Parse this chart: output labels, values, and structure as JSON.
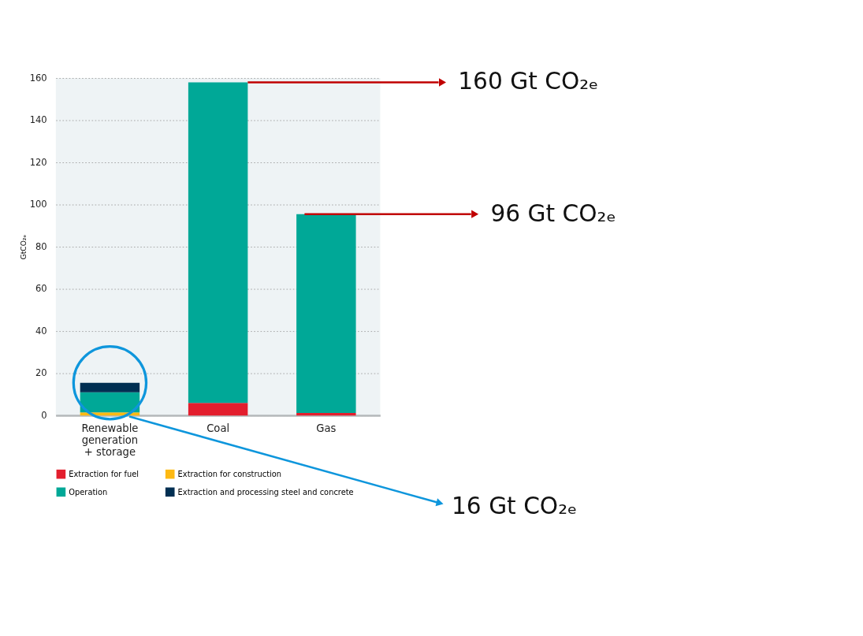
{
  "chart_data": {
    "type": "bar",
    "stacked": true,
    "ylabel": "GtCO₂ₑ",
    "categories": [
      "Renewable generation + storage",
      "Coal",
      "Gas"
    ],
    "series": [
      {
        "name": "Extraction for fuel",
        "color": "#e31e2d",
        "values": [
          0,
          6,
          1.2
        ]
      },
      {
        "name": "Extraction for construction",
        "color": "#fdb913",
        "values": [
          1.5,
          0,
          0
        ]
      },
      {
        "name": "Operation",
        "color": "#00a897",
        "values": [
          9.5,
          152,
          94.3
        ]
      },
      {
        "name": "Extraction and processing steel and concrete",
        "color": "#002f52",
        "values": [
          4.5,
          0,
          0
        ]
      }
    ],
    "ylim": [
      0,
      160
    ],
    "yticks": [
      0,
      20,
      40,
      60,
      80,
      100,
      120,
      140,
      160
    ],
    "grid": "y",
    "legend": "bottom",
    "annotations": [
      "160 Gt CO₂ₑ",
      "96 Gt CO₂ₑ",
      "16 Gt CO₂ₑ"
    ]
  }
}
